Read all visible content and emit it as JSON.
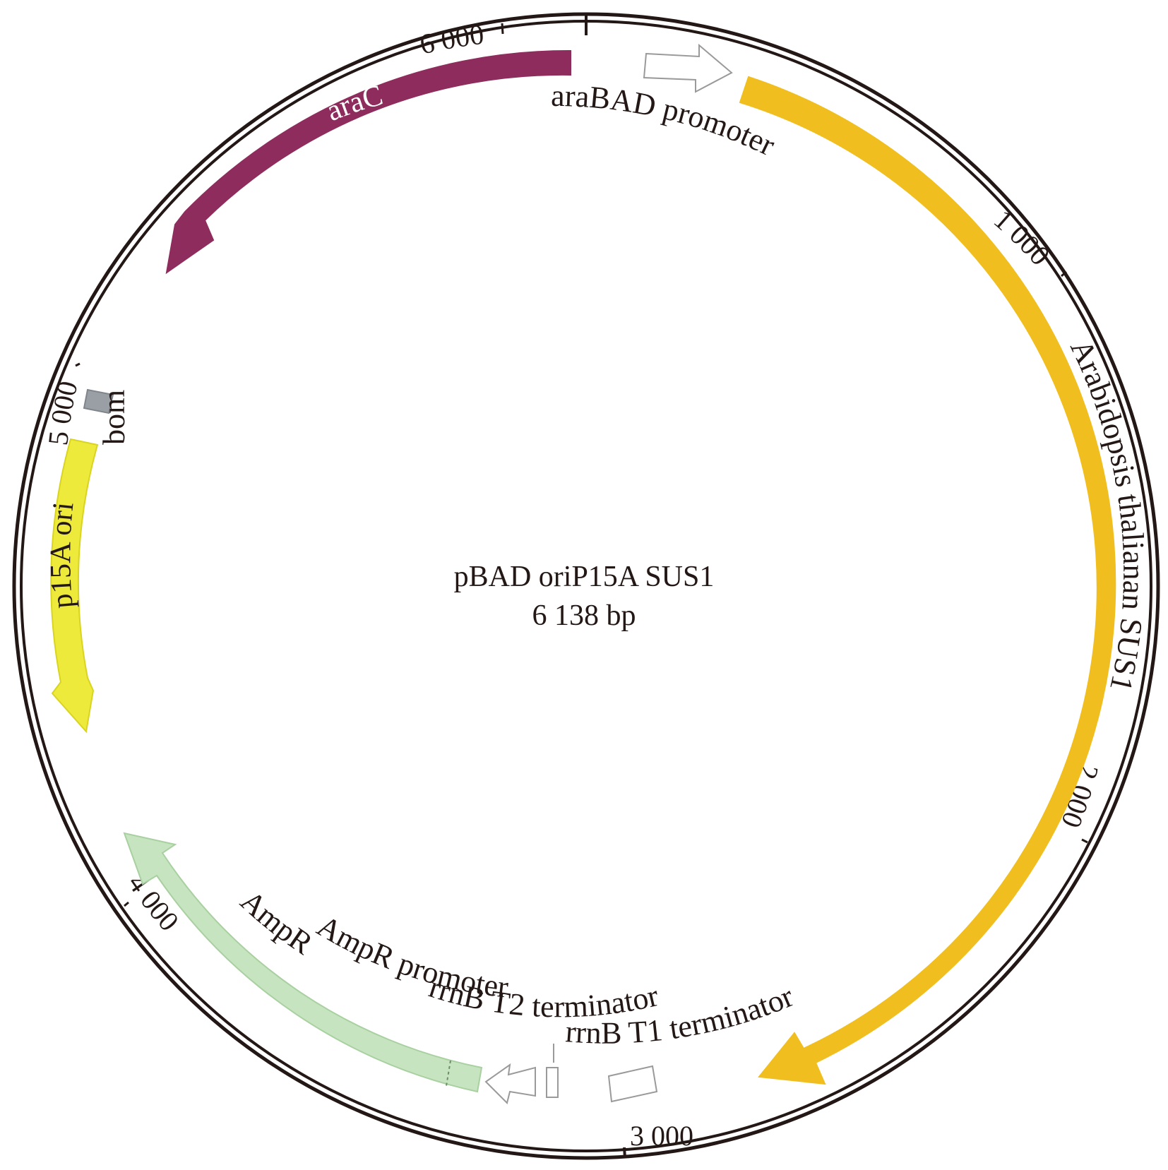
{
  "plasmid": {
    "name": "pBAD oriP15A SUS1",
    "size_label": "6 138 bp",
    "total_bp": 6138
  },
  "ticks": [
    {
      "bp": 1000,
      "label": "1 000"
    },
    {
      "bp": 2000,
      "label": "2 000"
    },
    {
      "bp": 3000,
      "label": "3 000"
    },
    {
      "bp": 4000,
      "label": "4 000"
    },
    {
      "bp": 5000,
      "label": "5 000"
    },
    {
      "bp": 6000,
      "label": "6 000"
    }
  ],
  "features": [
    {
      "id": "arabad-promoter",
      "label": "araBAD promoter",
      "color": "#ffffff",
      "stroke": "#9a9a9a"
    },
    {
      "id": "sus1",
      "label": "Arabidopsis thalianan SUS1",
      "color": "#f0be1e",
      "stroke": "#f0be1e"
    },
    {
      "id": "rrnb-t1",
      "label": "rrnB T1 terminator",
      "color": "#ffffff",
      "stroke": "#9a9a9a"
    },
    {
      "id": "rrnb-t2",
      "label": "rrnB T2 terminator",
      "color": "#ffffff",
      "stroke": "#9a9a9a"
    },
    {
      "id": "ampr-promoter",
      "label": "AmpR promoter",
      "color": "#ffffff",
      "stroke": "#9a9a9a"
    },
    {
      "id": "ampr",
      "label": "AmpR",
      "color": "#c7e4c0",
      "stroke": "#a9d0a0"
    },
    {
      "id": "p15a-ori",
      "label": "p15A ori",
      "color": "#eeea3c",
      "stroke": "#d8d420"
    },
    {
      "id": "bom",
      "label": "bom",
      "color": "#9a9fa6",
      "stroke": "#80858c"
    },
    {
      "id": "arac",
      "label": "araC",
      "color": "#8e2d5d",
      "stroke": "#8e2d5d"
    }
  ]
}
